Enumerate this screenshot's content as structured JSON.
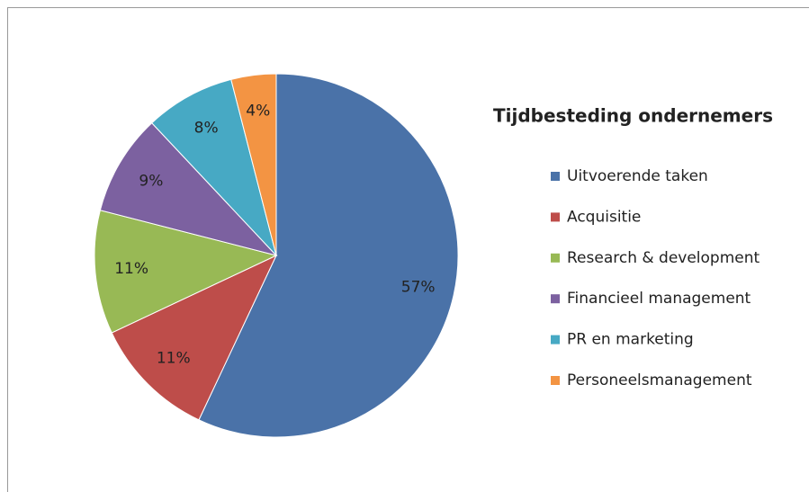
{
  "chart_data": {
    "type": "pie",
    "title": "Tijdbesteding ondernemers",
    "categories": [
      "Uitvoerende taken",
      "Acquisitie",
      "Research & development",
      "Financieel management",
      "PR en marketing",
      "Personeelsmanagement"
    ],
    "values": [
      57,
      11,
      11,
      9,
      8,
      4
    ],
    "value_labels": [
      "57%",
      "11%",
      "11%",
      "9%",
      "8%",
      "4%"
    ],
    "colors": [
      "#4a72a8",
      "#be4d4a",
      "#98b955",
      "#7c61a0",
      "#47a9c4",
      "#f39443"
    ]
  }
}
